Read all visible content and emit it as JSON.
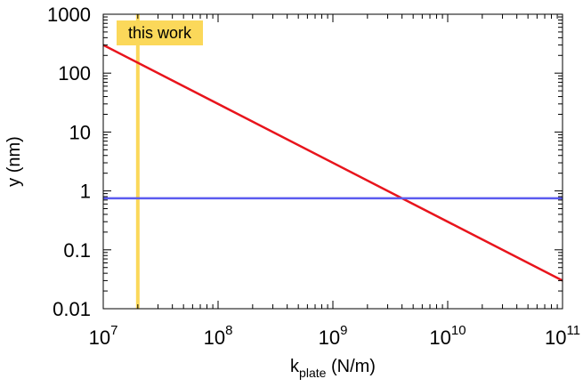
{
  "chart_data": {
    "type": "line",
    "x_scale": "log",
    "y_scale": "log",
    "xlim": [
      10000000,
      100000000000
    ],
    "ylim": [
      0.01,
      1000
    ],
    "grid": false,
    "xlabel": {
      "base": "k",
      "subscript": "plate",
      "suffix": " (N/m)"
    },
    "ylabel": "y (nm)",
    "x_ticks": [
      {
        "value": 10000000,
        "base": "10",
        "exp": "7"
      },
      {
        "value": 100000000,
        "base": "10",
        "exp": "8"
      },
      {
        "value": 1000000000,
        "base": "10",
        "exp": "9"
      },
      {
        "value": 10000000000,
        "base": "10",
        "exp": "10"
      },
      {
        "value": 100000000000,
        "base": "10",
        "exp": "11"
      }
    ],
    "y_ticks": [
      {
        "value": 0.01,
        "label": "0.01"
      },
      {
        "value": 0.1,
        "label": "0.1"
      },
      {
        "value": 1,
        "label": "1"
      },
      {
        "value": 10,
        "label": "10"
      },
      {
        "value": 100,
        "label": "100"
      },
      {
        "value": 1000,
        "label": "1000"
      }
    ],
    "series": [
      {
        "color": "#e8141c",
        "x": [
          10000000,
          100000000000
        ],
        "y": [
          300,
          0.03
        ]
      },
      {
        "color": "#5b5bef",
        "x": [
          10000000,
          100000000000
        ],
        "y": [
          0.75,
          0.75
        ]
      }
    ],
    "annotation": {
      "text": "this work",
      "x": 20000000,
      "line_color": "#fbd85a",
      "box_color": "#fbd85a"
    }
  }
}
